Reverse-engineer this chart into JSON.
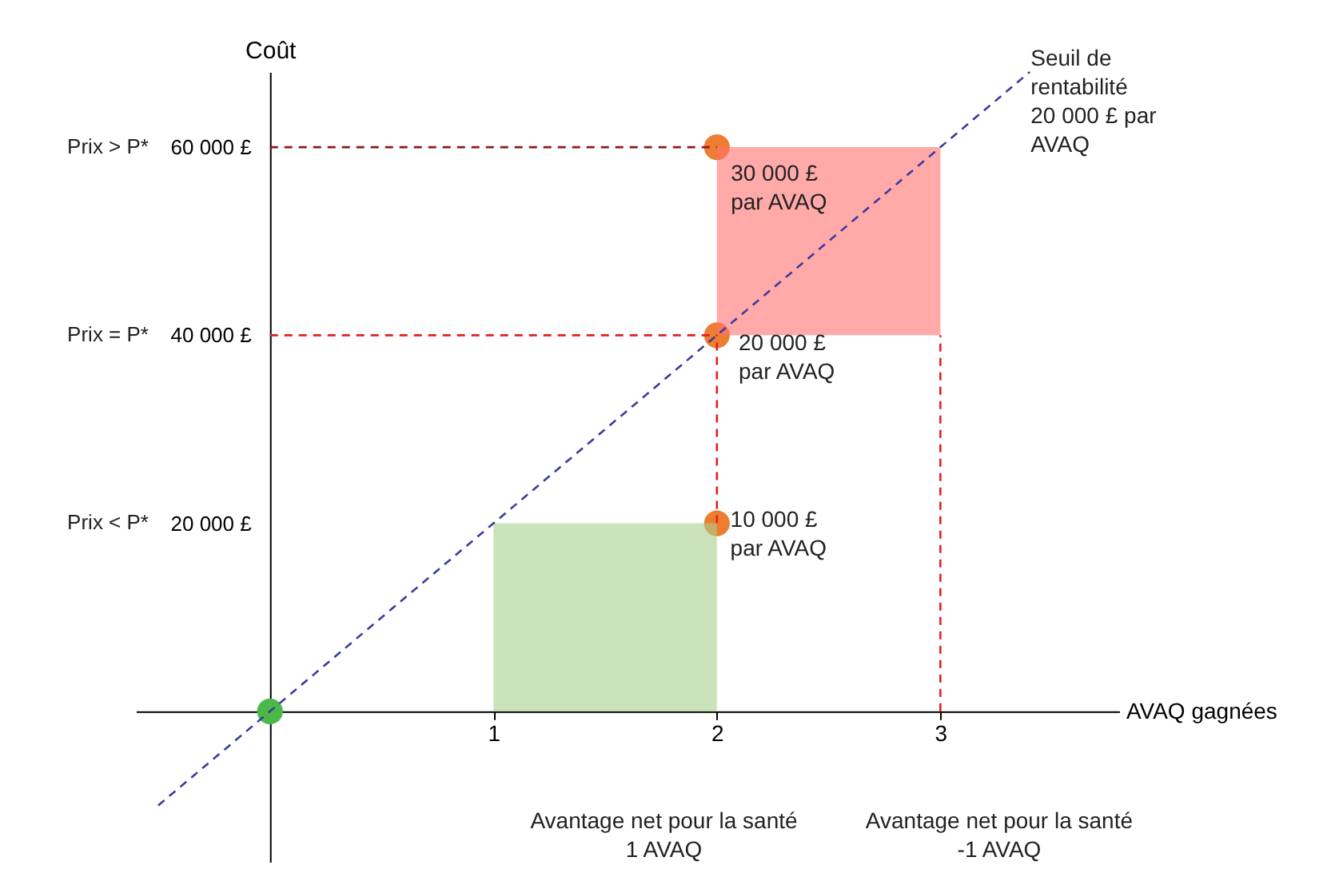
{
  "chart_data": {
    "type": "line",
    "xlabel": "AVAQ gagnées",
    "ylabel": "Coût",
    "xlim": [
      -0.6,
      3.8
    ],
    "ylim": [
      -16000,
      68000
    ],
    "xticks": [
      1,
      2,
      3
    ],
    "yticks": [
      {
        "value": 20000,
        "label": "20 000 £"
      },
      {
        "value": 40000,
        "label": "40 000 £"
      },
      {
        "value": 60000,
        "label": "60 000 £"
      }
    ],
    "grid": false,
    "series": [
      {
        "type": "bar",
        "color": "#a9d18e",
        "x": [
          1.5
        ],
        "values": [
          20000
        ],
        "base": [
          0
        ]
      },
      {
        "type": "bar",
        "color": "#ff7070",
        "x": [
          2.5
        ],
        "values": [
          20000
        ],
        "base": [
          40000
        ]
      },
      {
        "color": "#3b3b9e",
        "line_style": "dashed",
        "x": [
          -0.5,
          3.4
        ],
        "values": [
          -10000,
          68000
        ]
      },
      {
        "color": "#8b1a1a",
        "line_style": "dashed",
        "x": [
          0,
          2
        ],
        "values": [
          60000,
          60000
        ]
      },
      {
        "color": "#e02020",
        "line_style": "dashed",
        "x": [
          0,
          2
        ],
        "values": [
          40000,
          40000
        ]
      },
      {
        "color": "#e02020",
        "line_style": "dashed",
        "x": [
          2,
          2
        ],
        "values": [
          20000,
          40000
        ]
      },
      {
        "color": "#e02020",
        "line_style": "dashed",
        "x": [
          3,
          3
        ],
        "values": [
          0,
          40000
        ]
      },
      {
        "type": "scatter",
        "color": "#ed7d31",
        "marker": "circle",
        "x": [
          2,
          2,
          2
        ],
        "values": [
          60000,
          40000,
          20000
        ]
      },
      {
        "type": "scatter",
        "color": "#4cb848",
        "marker": "circle",
        "x": [
          0
        ],
        "values": [
          0
        ]
      }
    ],
    "annotations": [
      "Prix > P*",
      "Prix = P*",
      "Prix < P*",
      "Seuil de\nrentabilité\n20 000 £ par\nAVAQ",
      "30 000 £\npar AVAQ",
      "20 000 £\npar AVAQ",
      {
        "text": "10 000 £\npar AVAQ",
        "x": 2.06,
        "y": 21500
      },
      "Avantage net pour la santé\n1 AVAQ",
      "Avantage net pour la santé\n-1 AVAQ"
    ]
  }
}
